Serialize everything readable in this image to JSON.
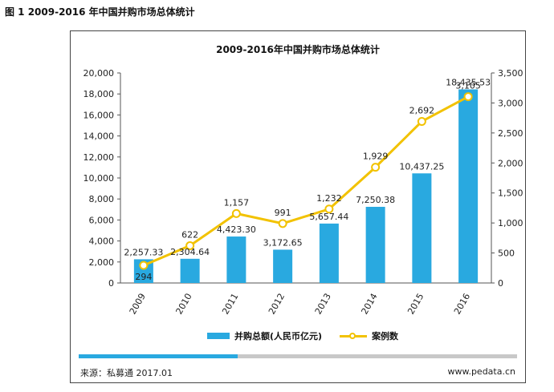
{
  "figure_caption": "图 1 2009-2016 年中国并购市场总体统计",
  "footer": {
    "source": "来源：私募通 2017.01",
    "site": "www.pedata.cn"
  },
  "colors": {
    "bar": "#29a9e0",
    "line": "#f2c200",
    "marker_fill": "#ffffff",
    "accent_strip": "#29a9e0"
  },
  "chart_data": {
    "type": "bar",
    "title": "2009-2016年中国并购市场总体统计",
    "categories": [
      "2009",
      "2010",
      "2011",
      "2012",
      "2013",
      "2014",
      "2015",
      "2016"
    ],
    "series": [
      {
        "name": "并购总额(人民币亿元)",
        "type": "bar",
        "axis": "left",
        "values": [
          2257.33,
          2304.64,
          4423.3,
          3172.65,
          5657.44,
          7250.38,
          10437.25,
          18435.53
        ],
        "labels": [
          "2,257.33",
          "2,304.64",
          "4,423.30",
          "3,172.65",
          "5,657.44",
          "7,250.38",
          "10,437.25",
          "18,435.53"
        ]
      },
      {
        "name": "案例数",
        "type": "line",
        "axis": "right",
        "values": [
          294,
          622,
          1157,
          991,
          1232,
          1929,
          2692,
          3105
        ],
        "labels": [
          "294",
          "622",
          "1,157",
          "991",
          "1,232",
          "1,929",
          "2,692",
          "3,105"
        ]
      }
    ],
    "y_left": {
      "range": [
        0,
        20000
      ],
      "ticks": [
        "0",
        "2,000",
        "4,000",
        "6,000",
        "8,000",
        "10,000",
        "12,000",
        "14,000",
        "16,000",
        "18,000",
        "20,000"
      ]
    },
    "y_right": {
      "range": [
        0,
        3500
      ],
      "ticks": [
        "0",
        "500",
        "1,000",
        "1,500",
        "2,000",
        "2,500",
        "3,000",
        "3,500"
      ]
    },
    "grid": false,
    "legend_position": "bottom"
  }
}
